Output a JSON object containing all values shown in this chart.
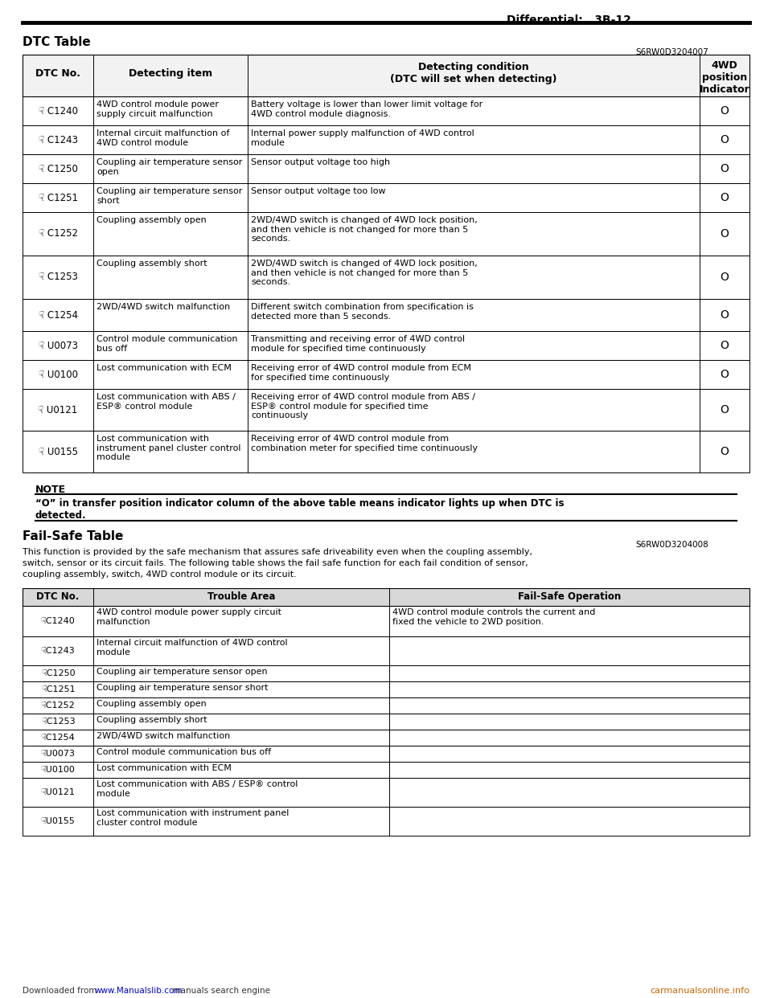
{
  "page_title": "Differential:   3B-12",
  "section1_title": "DTC Table",
  "section1_code": "S6RW0D3204007",
  "dtc_table_rows": [
    [
      "☟ C1240",
      "4WD control module power\nsupply circuit malfunction",
      "Battery voltage is lower than lower limit voltage for\n4WD control module diagnosis.",
      "O"
    ],
    [
      "☟ C1243",
      "Internal circuit malfunction of\n4WD control module",
      "Internal power supply malfunction of 4WD control\nmodule",
      "O"
    ],
    [
      "☟ C1250",
      "Coupling air temperature sensor\nopen",
      "Sensor output voltage too high",
      "O"
    ],
    [
      "☟ C1251",
      "Coupling air temperature sensor\nshort",
      "Sensor output voltage too low",
      "O"
    ],
    [
      "☟ C1252",
      "Coupling assembly open",
      "2WD/4WD switch is changed of 4WD lock position,\nand then vehicle is not changed for more than 5\nseconds.",
      "O"
    ],
    [
      "☟ C1253",
      "Coupling assembly short",
      "2WD/4WD switch is changed of 4WD lock position,\nand then vehicle is not changed for more than 5\nseconds.",
      "O"
    ],
    [
      "☟ C1254",
      "2WD/4WD switch malfunction",
      "Different switch combination from specification is\ndetected more than 5 seconds.",
      "O"
    ],
    [
      "☟ U0073",
      "Control module communication\nbus off",
      "Transmitting and receiving error of 4WD control\nmodule for specified time continuously",
      "O"
    ],
    [
      "☟ U0100",
      "Lost communication with ECM",
      "Receiving error of 4WD control module from ECM\nfor specified time continuously",
      "O"
    ],
    [
      "☟ U0121",
      "Lost communication with ABS /\nESP® control module",
      "Receiving error of 4WD control module from ABS /\nESP® control module for specified time\ncontinuously",
      "O"
    ],
    [
      "☟ U0155",
      "Lost communication with\ninstrument panel cluster control\nmodule",
      "Receiving error of 4WD control module from\ncombination meter for specified time continuously",
      "O"
    ]
  ],
  "note_title": "NOTE",
  "note_text": "“O” in transfer position indicator column of the above table means indicator lights up when DTC is\ndetected.",
  "section2_title": "Fail-Safe Table",
  "section2_code": "S6RW0D3204008",
  "section2_desc_lines": [
    "This function is provided by the safe mechanism that assures safe driveability even when the coupling assembly,",
    "switch, sensor or its circuit fails. The following table shows the fail safe function for each fail condition of sensor,",
    "coupling assembly, switch, 4WD control module or its circuit."
  ],
  "fail_table_rows": [
    [
      "☟C1240",
      "4WD control module power supply circuit\nmalfunction",
      "4WD control module controls the current and\nfixed the vehicle to 2WD position."
    ],
    [
      "☟C1243",
      "Internal circuit malfunction of 4WD control\nmodule",
      ""
    ],
    [
      "☟C1250",
      "Coupling air temperature sensor open",
      ""
    ],
    [
      "☟C1251",
      "Coupling air temperature sensor short",
      ""
    ],
    [
      "☟C1252",
      "Coupling assembly open",
      ""
    ],
    [
      "☟C1253",
      "Coupling assembly short",
      ""
    ],
    [
      "☟C1254",
      "2WD/4WD switch malfunction",
      ""
    ],
    [
      "☟U0073",
      "Control module communication bus off",
      ""
    ],
    [
      "☟U0100",
      "Lost communication with ECM",
      ""
    ],
    [
      "☟U0121",
      "Lost communication with ABS / ESP® control\nmodule",
      ""
    ],
    [
      "☟U0155",
      "Lost communication with instrument panel\ncluster control module",
      ""
    ]
  ],
  "footer_text": "Downloaded from www.Manualslib.com  manuals search engine",
  "footer_url": "www.Manualslib.com",
  "footer_right": "carmanualsonline.info",
  "bg_color": "#ffffff"
}
